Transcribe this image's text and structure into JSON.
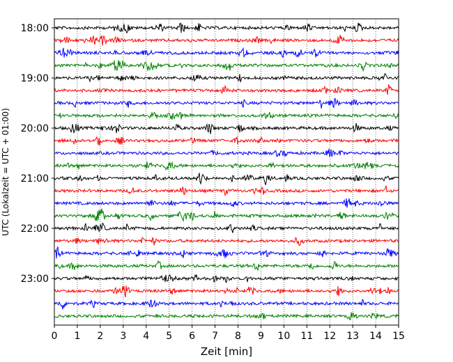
{
  "chart_data": {
    "type": "line",
    "title": "",
    "xlabel": "Zeit  [min]",
    "ylabel": "UTC (Lokalzeit = UTC + 01:00)",
    "xlim": [
      0,
      15
    ],
    "x_ticks": [
      "0",
      "1",
      "2",
      "3",
      "4",
      "5",
      "6",
      "7",
      "8",
      "9",
      "10",
      "11",
      "12",
      "13",
      "14",
      "15"
    ],
    "y_ticks": [
      "18:00",
      "19:00",
      "20:00",
      "21:00",
      "22:00",
      "23:00"
    ],
    "grid": "vertical dotted at each minute",
    "trace_color_cycle": [
      "#000000",
      "#ff0000",
      "#0000ff",
      "#008000"
    ],
    "traces": [
      {
        "start": "18:00",
        "color": "#000000"
      },
      {
        "start": "18:15",
        "color": "#ff0000"
      },
      {
        "start": "18:30",
        "color": "#0000ff"
      },
      {
        "start": "18:45",
        "color": "#008000"
      },
      {
        "start": "19:00",
        "color": "#000000"
      },
      {
        "start": "19:15",
        "color": "#ff0000"
      },
      {
        "start": "19:30",
        "color": "#0000ff"
      },
      {
        "start": "19:45",
        "color": "#008000"
      },
      {
        "start": "20:00",
        "color": "#000000"
      },
      {
        "start": "20:15",
        "color": "#ff0000"
      },
      {
        "start": "20:30",
        "color": "#0000ff"
      },
      {
        "start": "20:45",
        "color": "#008000"
      },
      {
        "start": "21:00",
        "color": "#000000"
      },
      {
        "start": "21:15",
        "color": "#ff0000"
      },
      {
        "start": "21:30",
        "color": "#0000ff"
      },
      {
        "start": "21:45",
        "color": "#008000"
      },
      {
        "start": "22:00",
        "color": "#000000"
      },
      {
        "start": "22:15",
        "color": "#ff0000"
      },
      {
        "start": "22:30",
        "color": "#0000ff"
      },
      {
        "start": "22:45",
        "color": "#008000"
      },
      {
        "start": "23:00",
        "color": "#000000"
      },
      {
        "start": "23:15",
        "color": "#ff0000"
      },
      {
        "start": "23:30",
        "color": "#0000ff"
      },
      {
        "start": "23:45",
        "color": "#008000"
      }
    ]
  }
}
